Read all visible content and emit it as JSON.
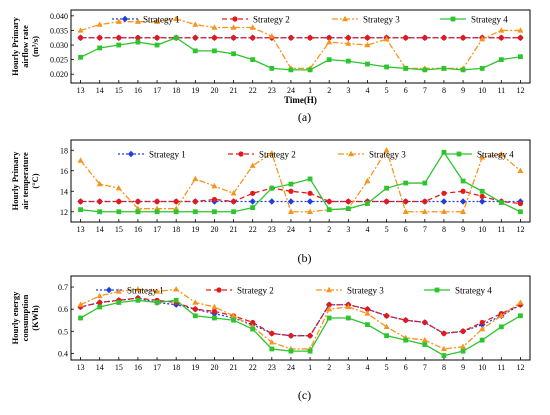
{
  "legend_labels": [
    "Strategy 1",
    "Strategy 2",
    "Strategy 3",
    "Strategy 4"
  ],
  "colors": {
    "strategy_1": "#1f3fe0",
    "strategy_2": "#e31a1c",
    "strategy_3": "#f5951f",
    "strategy_4": "#2ec42e"
  },
  "chart_data": [
    {
      "type": "line",
      "caption": "(a)",
      "ylabel_lines": [
        "Hourly Primary",
        "airflow rate",
        "(m³/s)"
      ],
      "xlabel": "Time(H)",
      "categories": [
        "13",
        "14",
        "15",
        "16",
        "17",
        "18",
        "19",
        "20",
        "21",
        "22",
        "23",
        "24",
        "1",
        "2",
        "3",
        "4",
        "5",
        "6",
        "7",
        "8",
        "9",
        "10",
        "11",
        "12"
      ],
      "ylim": [
        0.017,
        0.042
      ],
      "yticks": [
        "0.020",
        "0.025",
        "0.030",
        "0.035",
        "0.040"
      ],
      "ytick_values": [
        0.02,
        0.025,
        0.03,
        0.035,
        0.04
      ],
      "legend_position": "top",
      "series": [
        {
          "name": "Strategy 1",
          "values": [
            0.0325,
            0.0325,
            0.0325,
            0.0325,
            0.0325,
            0.0325,
            0.0325,
            0.0325,
            0.0325,
            0.0325,
            0.0325,
            0.0325,
            0.0325,
            0.0325,
            0.0325,
            0.0325,
            0.0325,
            0.0325,
            0.0325,
            0.0325,
            0.0325,
            0.0325,
            0.0325,
            0.0325
          ]
        },
        {
          "name": "Strategy 2",
          "values": [
            0.0325,
            0.0325,
            0.0325,
            0.0325,
            0.0325,
            0.0325,
            0.0325,
            0.0325,
            0.0325,
            0.0325,
            0.0325,
            0.0325,
            0.0325,
            0.0325,
            0.0325,
            0.0325,
            0.0325,
            0.0325,
            0.0325,
            0.0325,
            0.0325,
            0.0325,
            0.0325,
            0.0325
          ]
        },
        {
          "name": "Strategy 3",
          "values": [
            0.035,
            0.037,
            0.038,
            0.038,
            0.038,
            0.039,
            0.037,
            0.036,
            0.036,
            0.036,
            0.033,
            0.022,
            0.022,
            0.031,
            0.0305,
            0.03,
            0.032,
            0.022,
            0.022,
            0.022,
            0.022,
            0.032,
            0.035,
            0.035
          ]
        },
        {
          "name": "Strategy 4",
          "values": [
            0.0258,
            0.029,
            0.03,
            0.031,
            0.03,
            0.0325,
            0.028,
            0.028,
            0.027,
            0.025,
            0.022,
            0.0215,
            0.0215,
            0.025,
            0.0245,
            0.0235,
            0.0225,
            0.022,
            0.0215,
            0.022,
            0.0215,
            0.022,
            0.025,
            0.026
          ]
        }
      ]
    },
    {
      "type": "line",
      "caption": "(b)",
      "ylabel_lines": [
        "Hourly Primary",
        "air temperature",
        "(°C)"
      ],
      "xlabel": "",
      "categories": [
        "13",
        "14",
        "15",
        "16",
        "17",
        "18",
        "19",
        "20",
        "21",
        "22",
        "23",
        "24",
        "1",
        "2",
        "3",
        "4",
        "5",
        "6",
        "7",
        "8",
        "9",
        "10",
        "11",
        "12"
      ],
      "ylim": [
        11,
        19
      ],
      "yticks": [
        "12",
        "14",
        "16",
        "18"
      ],
      "ytick_values": [
        12,
        14,
        16,
        18
      ],
      "legend_position": "top",
      "series": [
        {
          "name": "Strategy 1",
          "values": [
            13,
            13,
            13,
            13,
            13,
            13,
            13,
            13,
            13,
            13,
            13,
            13,
            13,
            13,
            13,
            13,
            13,
            13,
            13,
            13,
            13,
            13,
            13,
            13
          ]
        },
        {
          "name": "Strategy 2",
          "values": [
            13,
            13,
            13,
            13,
            13,
            13,
            13,
            13.2,
            13,
            13.8,
            14.3,
            14,
            13.8,
            13,
            13,
            13,
            13,
            13,
            13,
            13.8,
            14,
            13.5,
            13,
            12.8
          ]
        },
        {
          "name": "Strategy 3",
          "values": [
            17,
            14.7,
            14.3,
            12.3,
            12.3,
            12.3,
            15.2,
            14.5,
            13.8,
            16.5,
            17.7,
            12,
            12,
            12.2,
            12.3,
            15,
            18,
            12,
            12,
            12,
            12,
            17.3,
            17.6,
            16
          ]
        },
        {
          "name": "Strategy 4",
          "values": [
            12.2,
            12,
            12,
            12,
            12,
            12,
            12,
            12,
            12,
            12.4,
            14.3,
            14.7,
            15.2,
            12.2,
            12.3,
            12.8,
            14.3,
            14.8,
            14.8,
            17.8,
            15,
            14,
            12.9,
            12
          ]
        }
      ]
    },
    {
      "type": "line",
      "caption": "(c)",
      "ylabel_lines": [
        "Hourly energy",
        "consumption",
        "(KWh)"
      ],
      "xlabel": "",
      "categories": [
        "13",
        "14",
        "15",
        "16",
        "17",
        "18",
        "19",
        "20",
        "21",
        "22",
        "23",
        "24",
        "1",
        "2",
        "3",
        "4",
        "5",
        "6",
        "7",
        "8",
        "9",
        "10",
        "11",
        "12"
      ],
      "ylim": [
        0.37,
        0.75
      ],
      "yticks": [
        "0.4",
        "0.5",
        "0.6",
        "0.7"
      ],
      "ytick_values": [
        0.4,
        0.5,
        0.6,
        0.7
      ],
      "legend_position": "top",
      "series": [
        {
          "name": "Strategy 1",
          "values": [
            0.61,
            0.63,
            0.64,
            0.65,
            0.63,
            0.62,
            0.6,
            0.58,
            0.56,
            0.53,
            0.49,
            0.48,
            0.48,
            0.62,
            0.62,
            0.6,
            0.57,
            0.55,
            0.54,
            0.49,
            0.5,
            0.53,
            0.57,
            0.62
          ]
        },
        {
          "name": "Strategy 2",
          "values": [
            0.61,
            0.63,
            0.64,
            0.65,
            0.64,
            0.63,
            0.6,
            0.59,
            0.57,
            0.54,
            0.49,
            0.48,
            0.48,
            0.62,
            0.62,
            0.6,
            0.57,
            0.55,
            0.54,
            0.49,
            0.5,
            0.54,
            0.58,
            0.62
          ]
        },
        {
          "name": "Strategy 3",
          "values": [
            0.62,
            0.66,
            0.68,
            0.69,
            0.68,
            0.69,
            0.63,
            0.61,
            0.57,
            0.52,
            0.45,
            0.42,
            0.42,
            0.6,
            0.61,
            0.58,
            0.52,
            0.47,
            0.46,
            0.42,
            0.43,
            0.51,
            0.57,
            0.63
          ]
        },
        {
          "name": "Strategy 4",
          "values": [
            0.56,
            0.61,
            0.63,
            0.64,
            0.63,
            0.64,
            0.57,
            0.56,
            0.55,
            0.51,
            0.42,
            0.41,
            0.41,
            0.56,
            0.56,
            0.53,
            0.48,
            0.46,
            0.44,
            0.39,
            0.41,
            0.46,
            0.52,
            0.57
          ]
        }
      ]
    }
  ]
}
